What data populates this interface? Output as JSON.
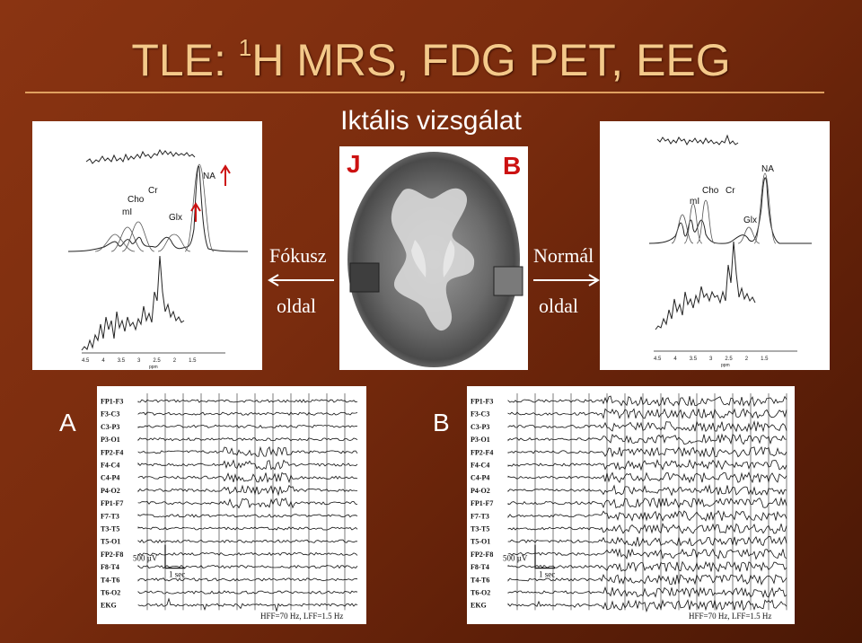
{
  "slide": {
    "title_pre": "TLE: ",
    "title_sup": "1",
    "title_post": "H MRS, FDG PET, EEG",
    "subtitle": "Iktális vizsgálat",
    "left_word1": "Fókusz",
    "left_word2": "oldal",
    "right_word1": "Normál",
    "right_word2": "oldal",
    "pet_left": "J",
    "pet_right": "B",
    "eeg_label_a": "A",
    "eeg_label_b": "B",
    "colors": {
      "title": "#f4c98a",
      "accent_red": "#cc1111",
      "background": "#7a2c0e"
    }
  },
  "mrs_left": {
    "peaks": [
      "mI",
      "Cho",
      "Cr",
      "Glx",
      "NA"
    ],
    "ticks": [
      "4.5",
      "4",
      "3.5",
      "3",
      "2.5",
      "2",
      "1.5"
    ],
    "axis_unit": "ppm"
  },
  "mrs_right": {
    "peaks": [
      "mI",
      "Cho",
      "Cr",
      "Glx",
      "NA"
    ],
    "ticks": [
      "4.5",
      "4",
      "3.5",
      "3",
      "2.5",
      "2",
      "1.5"
    ],
    "axis_unit": "ppm"
  },
  "eeg_a": {
    "channels": [
      "FP1-F3",
      "F3-C3",
      "C3-P3",
      "P3-O1",
      "FP2-F4",
      "F4-C4",
      "C4-P4",
      "P4-O2",
      "FP1-F7",
      "F7-T3",
      "T3-T5",
      "T5-O1",
      "FP2-F8",
      "F8-T4",
      "T4-T6",
      "T6-O2",
      "EKG"
    ],
    "scale_voltage": "500 µV",
    "scale_time": "1 sec",
    "filter": "HFF=70 Hz, LFF=1.5 Hz"
  },
  "eeg_b": {
    "channels": [
      "FP1-F3",
      "F3-C3",
      "C3-P3",
      "P3-O1",
      "FP2-F4",
      "F4-C4",
      "C4-P4",
      "P4-O2",
      "FP1-F7",
      "F7-T3",
      "T3-T5",
      "T5-O1",
      "FP2-F8",
      "F8-T4",
      "T4-T6",
      "T6-O2",
      "EKG"
    ],
    "scale_voltage": "500 µV",
    "scale_time": "1 sec",
    "filter": "HFF=70 Hz, LFF=1.5 Hz"
  }
}
